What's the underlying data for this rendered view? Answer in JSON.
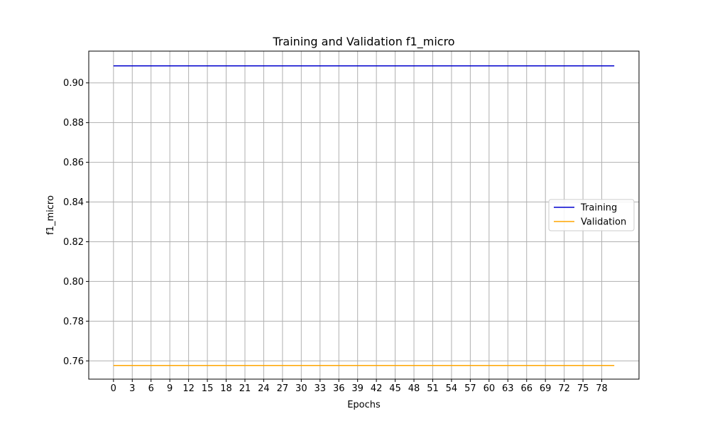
{
  "chart_data": {
    "type": "line",
    "title": "Training and Validation f1_micro",
    "xlabel": "Epochs",
    "ylabel": "f1_micro",
    "xlim": [
      -3.95,
      83.95
    ],
    "ylim": [
      0.7508,
      0.916
    ],
    "x_ticks": [
      0,
      3,
      6,
      9,
      12,
      15,
      18,
      21,
      24,
      27,
      30,
      33,
      36,
      39,
      42,
      45,
      48,
      51,
      54,
      57,
      60,
      63,
      66,
      69,
      72,
      75,
      78
    ],
    "y_ticks": [
      0.76,
      0.78,
      0.8,
      0.82,
      0.84,
      0.86,
      0.88,
      0.9
    ],
    "y_tick_labels": [
      "0.76",
      "0.78",
      "0.80",
      "0.82",
      "0.84",
      "0.86",
      "0.88",
      "0.90"
    ],
    "x_start": 0,
    "x_end": 80,
    "grid": true,
    "legend_position": "center-right",
    "series": [
      {
        "name": "Training",
        "color": "#0000cd",
        "constant_value": 0.9086
      },
      {
        "name": "Validation",
        "color": "#ffa500",
        "constant_value": 0.7577
      }
    ]
  }
}
